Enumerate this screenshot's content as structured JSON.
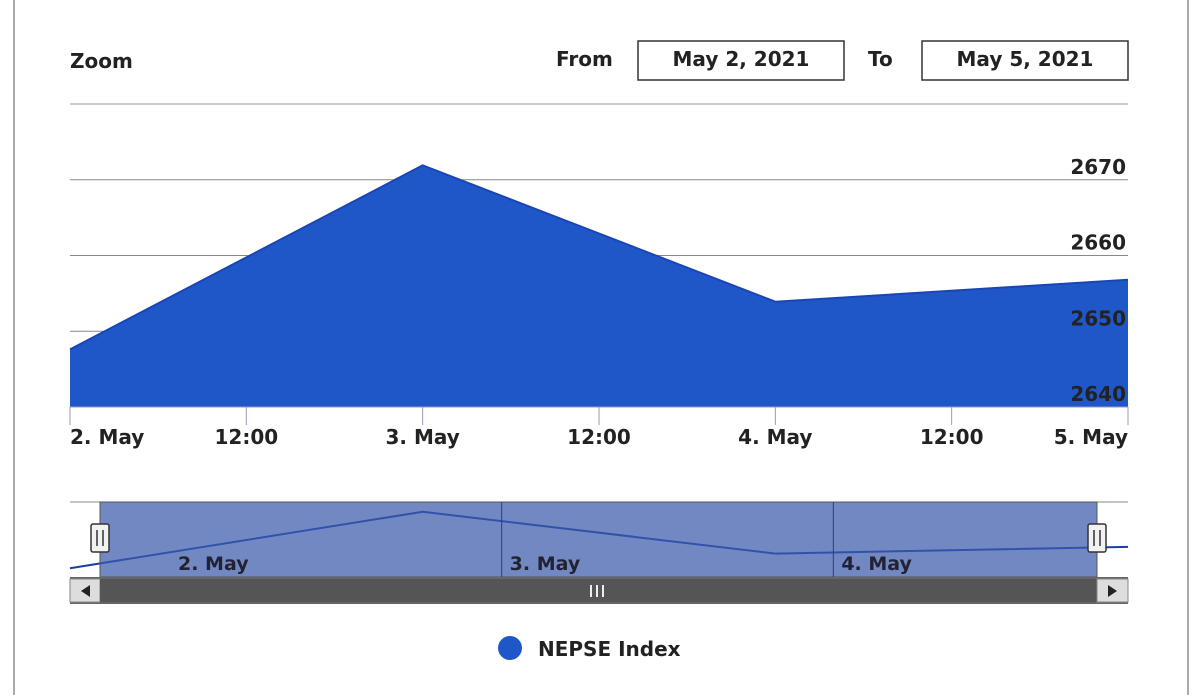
{
  "zoom_label": "Zoom",
  "range": {
    "from_label": "From",
    "from": "May 2, 2021",
    "to_label": "To",
    "to": "May 5, 2021"
  },
  "chart_data": {
    "type": "area",
    "categories": [
      "2. May",
      "3. May",
      "4. May",
      "5. May"
    ],
    "between_labels": [
      "12:00",
      "12:00",
      "12:00"
    ],
    "series": [
      {
        "name": "NEPSE Index",
        "color": "#1f57c9",
        "values": [
          2647.6,
          2671.9,
          2653.9,
          2656.8
        ]
      }
    ],
    "ylim": [
      2640,
      2680
    ],
    "yticks": [
      2640,
      2650,
      2660,
      2670
    ],
    "grid": true
  }
}
